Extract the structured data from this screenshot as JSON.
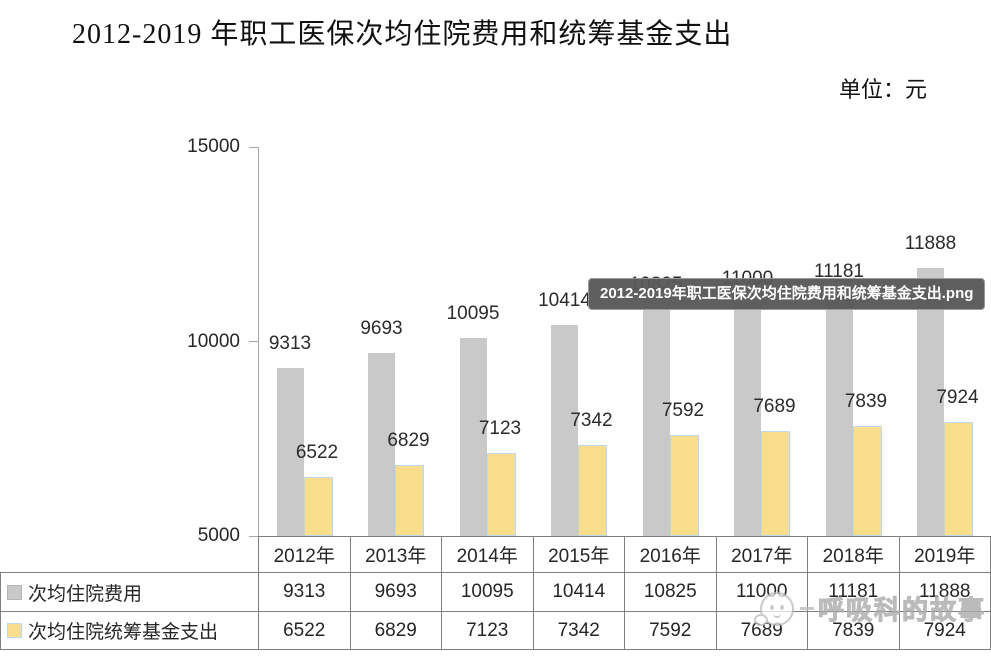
{
  "title": "2012-2019 年职工医保次均住院费用和统筹基金支出",
  "unit_label": "单位：元",
  "tooltip": {
    "filename": "2012-2019年职工医保次均住院费用和统筹基金支出.png"
  },
  "watermark": {
    "text": "呼吸科的故事"
  },
  "colors": {
    "series1_fill": "#c9c9c9",
    "series2_fill": "#fade8c",
    "series2_border": "#bcd8ee",
    "axis": "#a8a8a8",
    "table_border": "#7f7f7f",
    "tooltip_bg": "#58585a"
  },
  "chart_data": {
    "type": "bar",
    "title": "2012-2019 年职工医保次均住院费用和统筹基金支出",
    "unit": "元",
    "categories": [
      "2012年",
      "2013年",
      "2014年",
      "2015年",
      "2016年",
      "2017年",
      "2018年",
      "2019年"
    ],
    "series": [
      {
        "name": "次均住院费用",
        "values": [
          9313,
          9693,
          10095,
          10414,
          10825,
          11000,
          11181,
          11888
        ]
      },
      {
        "name": "次均住院统筹基金支出",
        "values": [
          6522,
          6829,
          7123,
          7342,
          7592,
          7689,
          7839,
          7924
        ]
      }
    ],
    "ylim": [
      5000,
      15000
    ],
    "yticks": [
      5000,
      10000,
      15000
    ],
    "grid": false,
    "value_labels": true,
    "legend_position": "table-left-column",
    "data_table_shown": true
  }
}
